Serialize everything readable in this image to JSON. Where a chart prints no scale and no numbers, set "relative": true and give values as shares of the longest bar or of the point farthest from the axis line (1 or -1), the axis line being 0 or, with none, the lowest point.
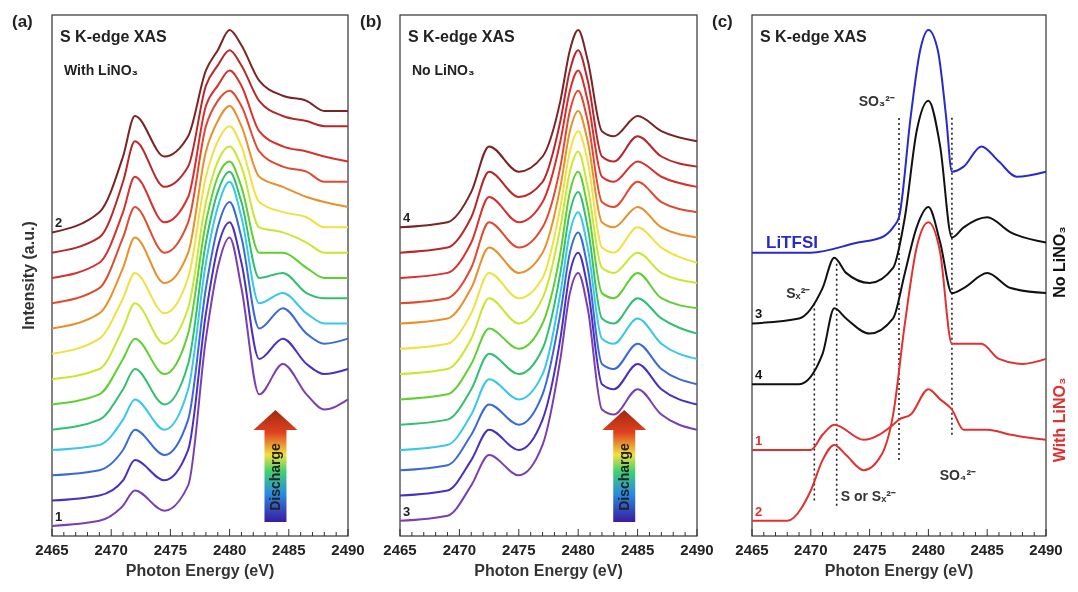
{
  "chart_data": [
    {
      "type": "line",
      "title": "(a)",
      "subtitle": "S K-edge XAS",
      "xlabel": "Photon Energy (eV)",
      "ylabel": "Intensity (a.u.)",
      "annotations": [
        "With LiNO₃",
        "Discharge"
      ],
      "relative": true,
      "tick_labels": "x",
      "xlim": [
        2465,
        2490
      ],
      "xticks": [
        2465,
        {
          "value": 2466,
          "label": null
        },
        {
          "value": 2467,
          "label": null
        },
        {
          "value": 2468,
          "label": null
        },
        {
          "value": 2469,
          "label": null
        },
        2470,
        {
          "value": 2471,
          "label": null
        },
        {
          "value": 2472,
          "label": null
        },
        {
          "value": 2473,
          "label": null
        },
        {
          "value": 2474,
          "label": null
        },
        2475,
        {
          "value": 2476,
          "label": null
        },
        {
          "value": 2477,
          "label": null
        },
        {
          "value": 2478,
          "label": null
        },
        {
          "value": 2479,
          "label": null
        },
        2480,
        {
          "value": 2481,
          "label": null
        },
        {
          "value": 2482,
          "label": null
        },
        {
          "value": 2483,
          "label": null
        },
        {
          "value": 2484,
          "label": null
        },
        2485,
        {
          "value": 2486,
          "label": null
        },
        {
          "value": 2487,
          "label": null
        },
        {
          "value": 2488,
          "label": null
        },
        {
          "value": 2489,
          "label": null
        },
        2490
      ],
      "x": [
        2465,
        2469,
        2471,
        2472,
        2474.5,
        2476.5,
        2478,
        2479,
        2480,
        2481,
        2482.5,
        2484.5,
        2486.5,
        2488,
        2490
      ],
      "series": [
        {
          "name": "1",
          "color": "#7b3fb0",
          "values": [
            0.02,
            0.03,
            0.06,
            0.09,
            0.05,
            0.1,
            0.39,
            0.53,
            0.59,
            0.49,
            0.28,
            0.34,
            0.28,
            0.25,
            0.27
          ]
        },
        {
          "color": "#4b2fc0",
          "values": [
            0.07,
            0.08,
            0.11,
            0.15,
            0.11,
            0.17,
            0.44,
            0.57,
            0.62,
            0.54,
            0.35,
            0.39,
            0.34,
            0.32,
            0.33
          ]
        },
        {
          "color": "#3a6ad8",
          "values": [
            0.12,
            0.13,
            0.17,
            0.21,
            0.16,
            0.23,
            0.49,
            0.61,
            0.66,
            0.59,
            0.41,
            0.45,
            0.4,
            0.38,
            0.39
          ]
        },
        {
          "color": "#38c8e8",
          "values": [
            0.17,
            0.18,
            0.23,
            0.27,
            0.21,
            0.29,
            0.54,
            0.65,
            0.7,
            0.63,
            0.46,
            0.48,
            0.44,
            0.42,
            0.42
          ]
        },
        {
          "color": "#30c070",
          "values": [
            0.21,
            0.23,
            0.29,
            0.33,
            0.26,
            0.34,
            0.58,
            0.68,
            0.72,
            0.66,
            0.51,
            0.52,
            0.48,
            0.47,
            0.47
          ]
        },
        {
          "color": "#60d030",
          "values": [
            0.26,
            0.28,
            0.35,
            0.39,
            0.32,
            0.4,
            0.62,
            0.71,
            0.74,
            0.69,
            0.56,
            0.56,
            0.53,
            0.51,
            0.51
          ]
        },
        {
          "color": "#c8e830",
          "values": [
            0.31,
            0.33,
            0.41,
            0.46,
            0.38,
            0.45,
            0.66,
            0.74,
            0.77,
            0.73,
            0.61,
            0.6,
            0.58,
            0.56,
            0.56
          ]
        },
        {
          "color": "#f0e040",
          "values": [
            0.36,
            0.39,
            0.47,
            0.52,
            0.44,
            0.51,
            0.71,
            0.78,
            0.81,
            0.77,
            0.66,
            0.64,
            0.63,
            0.61,
            0.61
          ]
        },
        {
          "color": "#e8902a",
          "values": [
            0.41,
            0.44,
            0.53,
            0.59,
            0.5,
            0.56,
            0.76,
            0.82,
            0.85,
            0.81,
            0.71,
            0.69,
            0.67,
            0.66,
            0.65
          ]
        },
        {
          "color": "#e04a30",
          "values": [
            0.46,
            0.49,
            0.59,
            0.65,
            0.56,
            0.62,
            0.81,
            0.86,
            0.88,
            0.85,
            0.76,
            0.73,
            0.72,
            0.7,
            0.7
          ]
        },
        {
          "color": "#d8302c",
          "values": [
            0.51,
            0.54,
            0.64,
            0.71,
            0.62,
            0.67,
            0.85,
            0.89,
            0.92,
            0.89,
            0.8,
            0.77,
            0.76,
            0.75,
            0.74
          ]
        },
        {
          "color": "#b8282a",
          "values": [
            0.56,
            0.59,
            0.7,
            0.78,
            0.69,
            0.73,
            0.89,
            0.93,
            0.96,
            0.93,
            0.86,
            0.83,
            0.82,
            0.81,
            0.81
          ]
        },
        {
          "name": "2",
          "color": "#7a2424",
          "values": [
            0.6,
            0.64,
            0.75,
            0.83,
            0.75,
            0.79,
            0.92,
            0.96,
            1.0,
            0.97,
            0.9,
            0.87,
            0.86,
            0.84,
            0.84
          ]
        }
      ]
    },
    {
      "type": "line",
      "title": "(b)",
      "subtitle": "S K-edge XAS",
      "xlabel": "Photon Energy (eV)",
      "annotations": [
        "No LiNO₃",
        "Discharge"
      ],
      "relative": true,
      "tick_labels": "x",
      "xlim": [
        2465,
        2490
      ],
      "xticks": [
        2465,
        {
          "value": 2466,
          "label": null
        },
        {
          "value": 2467,
          "label": null
        },
        {
          "value": 2468,
          "label": null
        },
        {
          "value": 2469,
          "label": null
        },
        2470,
        {
          "value": 2471,
          "label": null
        },
        {
          "value": 2472,
          "label": null
        },
        {
          "value": 2473,
          "label": null
        },
        {
          "value": 2474,
          "label": null
        },
        2475,
        {
          "value": 2476,
          "label": null
        },
        {
          "value": 2477,
          "label": null
        },
        {
          "value": 2478,
          "label": null
        },
        {
          "value": 2479,
          "label": null
        },
        2480,
        {
          "value": 2481,
          "label": null
        },
        {
          "value": 2482,
          "label": null
        },
        {
          "value": 2483,
          "label": null
        },
        {
          "value": 2484,
          "label": null
        },
        2485,
        {
          "value": 2486,
          "label": null
        },
        {
          "value": 2487,
          "label": null
        },
        {
          "value": 2488,
          "label": null
        },
        {
          "value": 2489,
          "label": null
        },
        2490
      ],
      "x": [
        2465,
        2469,
        2471,
        2472.5,
        2475,
        2477,
        2478.5,
        2479.3,
        2480,
        2480.8,
        2482,
        2483,
        2485,
        2487,
        2490
      ],
      "series": [
        {
          "name": "3",
          "color": "#7b3fb0",
          "values": [
            0.03,
            0.04,
            0.1,
            0.16,
            0.12,
            0.18,
            0.35,
            0.48,
            0.52,
            0.45,
            0.25,
            0.24,
            0.29,
            0.24,
            0.21
          ]
        },
        {
          "color": "#4b2fc0",
          "values": [
            0.08,
            0.09,
            0.15,
            0.21,
            0.17,
            0.23,
            0.39,
            0.52,
            0.56,
            0.49,
            0.3,
            0.29,
            0.34,
            0.29,
            0.26
          ]
        },
        {
          "color": "#3a6ad8",
          "values": [
            0.13,
            0.14,
            0.2,
            0.26,
            0.22,
            0.28,
            0.44,
            0.56,
            0.6,
            0.53,
            0.34,
            0.33,
            0.38,
            0.33,
            0.3
          ]
        },
        {
          "color": "#38c8e8",
          "values": [
            0.17,
            0.18,
            0.24,
            0.31,
            0.27,
            0.32,
            0.48,
            0.6,
            0.64,
            0.57,
            0.39,
            0.38,
            0.43,
            0.38,
            0.35
          ]
        },
        {
          "color": "#30c070",
          "values": [
            0.22,
            0.23,
            0.29,
            0.36,
            0.32,
            0.37,
            0.52,
            0.64,
            0.68,
            0.61,
            0.43,
            0.42,
            0.47,
            0.43,
            0.4
          ]
        },
        {
          "color": "#60d030",
          "values": [
            0.27,
            0.28,
            0.34,
            0.41,
            0.37,
            0.42,
            0.56,
            0.68,
            0.72,
            0.65,
            0.48,
            0.47,
            0.52,
            0.47,
            0.45
          ]
        },
        {
          "color": "#c8e830",
          "values": [
            0.32,
            0.33,
            0.39,
            0.47,
            0.42,
            0.47,
            0.61,
            0.72,
            0.76,
            0.69,
            0.53,
            0.52,
            0.56,
            0.52,
            0.5
          ]
        },
        {
          "color": "#f0e040",
          "values": [
            0.37,
            0.38,
            0.44,
            0.52,
            0.47,
            0.51,
            0.65,
            0.76,
            0.8,
            0.74,
            0.57,
            0.56,
            0.61,
            0.57,
            0.54
          ]
        },
        {
          "color": "#e8902a",
          "values": [
            0.42,
            0.43,
            0.49,
            0.57,
            0.52,
            0.56,
            0.69,
            0.8,
            0.84,
            0.78,
            0.62,
            0.61,
            0.65,
            0.61,
            0.59
          ]
        },
        {
          "color": "#e04a30",
          "values": [
            0.46,
            0.47,
            0.53,
            0.62,
            0.57,
            0.61,
            0.73,
            0.84,
            0.88,
            0.82,
            0.66,
            0.65,
            0.7,
            0.66,
            0.64
          ]
        },
        {
          "color": "#d8302c",
          "values": [
            0.51,
            0.52,
            0.58,
            0.67,
            0.62,
            0.66,
            0.78,
            0.88,
            0.92,
            0.86,
            0.71,
            0.7,
            0.74,
            0.71,
            0.69
          ]
        },
        {
          "color": "#b8282a",
          "values": [
            0.56,
            0.57,
            0.63,
            0.72,
            0.67,
            0.7,
            0.82,
            0.92,
            0.96,
            0.9,
            0.75,
            0.74,
            0.79,
            0.75,
            0.73
          ]
        },
        {
          "name": "4",
          "color": "#7a2424",
          "values": [
            0.61,
            0.62,
            0.68,
            0.77,
            0.72,
            0.75,
            0.86,
            0.96,
            1.0,
            0.94,
            0.8,
            0.79,
            0.83,
            0.8,
            0.78
          ]
        }
      ]
    },
    {
      "type": "line",
      "title": "(c)",
      "subtitle": "S K-edge XAS",
      "xlabel": "Photon Energy (eV)",
      "annotations": [
        "No LiNO₃",
        "With LiNO₃"
      ],
      "relative": true,
      "tick_labels": "x",
      "xlim": [
        2465,
        2490
      ],
      "xticks": [
        2465,
        {
          "value": 2466,
          "label": null
        },
        {
          "value": 2467,
          "label": null
        },
        {
          "value": 2468,
          "label": null
        },
        {
          "value": 2469,
          "label": null
        },
        2470,
        {
          "value": 2471,
          "label": null
        },
        {
          "value": 2472,
          "label": null
        },
        {
          "value": 2473,
          "label": null
        },
        {
          "value": 2474,
          "label": null
        },
        2475,
        {
          "value": 2476,
          "label": null
        },
        {
          "value": 2477,
          "label": null
        },
        {
          "value": 2478,
          "label": null
        },
        {
          "value": 2479,
          "label": null
        },
        2480,
        {
          "value": 2481,
          "label": null
        },
        {
          "value": 2482,
          "label": null
        },
        {
          "value": 2483,
          "label": null
        },
        {
          "value": 2484,
          "label": null
        },
        2485,
        {
          "value": 2486,
          "label": null
        },
        {
          "value": 2487,
          "label": null
        },
        {
          "value": 2488,
          "label": null
        },
        {
          "value": 2489,
          "label": null
        },
        2490
      ],
      "ref_lines": [
        {
          "axis": "x",
          "value": 2470.3,
          "label": "Sₓ²⁻",
          "color": "#222222",
          "line_style": "dotted"
        },
        {
          "axis": "x",
          "value": 2472.2,
          "label": "S or Sₓ²⁻",
          "color": "#222222",
          "line_style": "dotted"
        },
        {
          "axis": "x",
          "value": 2477.5,
          "label": "SO₃²⁻",
          "color": "#222222",
          "line_style": "dotted"
        },
        {
          "axis": "x",
          "value": 2482,
          "label": "SO₄²⁻",
          "color": "#222222",
          "line_style": "dotted"
        }
      ],
      "series": [
        {
          "name": "LiTFSI",
          "color": "#2a2ac8",
          "x": [
            2465,
            2470,
            2474,
            2476,
            2477,
            2477.5,
            2478.5,
            2479.3,
            2480,
            2480.8,
            2481.5,
            2482,
            2483,
            2484.5,
            2486,
            2487.5,
            2490
          ],
          "values": [
            0.56,
            0.56,
            0.58,
            0.59,
            0.61,
            0.63,
            0.83,
            0.96,
            1.0,
            0.96,
            0.83,
            0.72,
            0.73,
            0.77,
            0.74,
            0.71,
            0.72
          ]
        },
        {
          "name": "3",
          "color": "#111111",
          "x": [
            2465,
            2469,
            2471,
            2472,
            2473,
            2475,
            2477,
            2478,
            2479,
            2480,
            2481,
            2482,
            2483,
            2485,
            2487,
            2490
          ],
          "values": [
            0.42,
            0.43,
            0.49,
            0.55,
            0.52,
            0.5,
            0.53,
            0.63,
            0.8,
            0.86,
            0.77,
            0.59,
            0.61,
            0.63,
            0.6,
            0.58
          ]
        },
        {
          "name": "4",
          "color": "#111111",
          "x": [
            2465,
            2469,
            2471,
            2472,
            2473,
            2475,
            2477,
            2478,
            2479,
            2480,
            2481,
            2482,
            2483,
            2485,
            2487,
            2490
          ],
          "values": [
            0.3,
            0.3,
            0.36,
            0.45,
            0.43,
            0.4,
            0.43,
            0.52,
            0.61,
            0.65,
            0.58,
            0.48,
            0.49,
            0.52,
            0.49,
            0.48
          ]
        },
        {
          "name": "1",
          "color": "#e03030",
          "x": [
            2465,
            2470,
            2471,
            2472,
            2474.5,
            2477,
            2477.5,
            2478.5,
            2480,
            2481,
            2482,
            2483,
            2485,
            2487,
            2490
          ],
          "values": [
            0.17,
            0.17,
            0.2,
            0.22,
            0.19,
            0.22,
            0.23,
            0.24,
            0.29,
            0.27,
            0.25,
            0.21,
            0.21,
            0.2,
            0.19
          ]
        },
        {
          "name": "2",
          "color": "#e03030",
          "x": [
            2465,
            2468,
            2470,
            2471,
            2472,
            2473,
            2474.5,
            2476,
            2477,
            2478,
            2479,
            2480,
            2481,
            2482,
            2483,
            2484.5,
            2486,
            2488,
            2490
          ],
          "values": [
            0.03,
            0.03,
            0.09,
            0.15,
            0.18,
            0.16,
            0.13,
            0.16,
            0.24,
            0.42,
            0.57,
            0.62,
            0.56,
            0.38,
            0.38,
            0.38,
            0.35,
            0.34,
            0.35
          ]
        }
      ]
    }
  ]
}
